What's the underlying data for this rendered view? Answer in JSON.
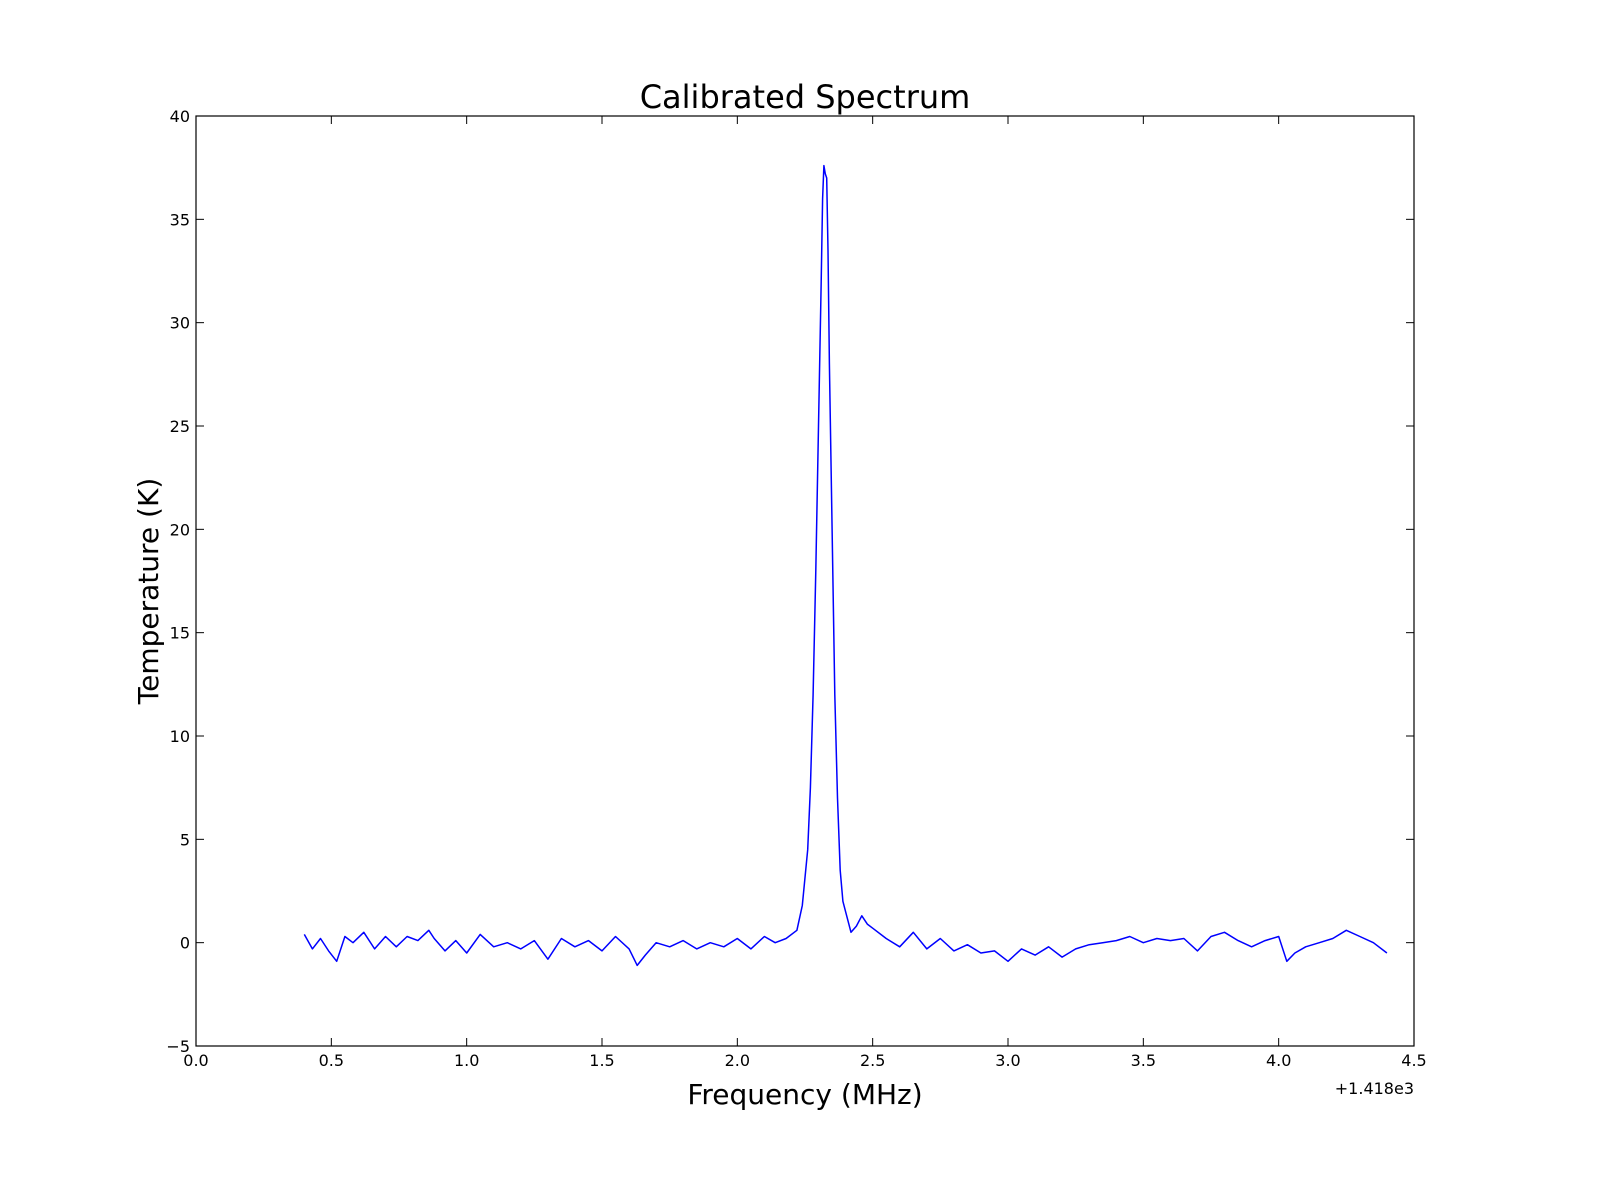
{
  "chart_data": {
    "type": "line",
    "title": "Calibrated Spectrum",
    "xlabel": "Frequency (MHz)",
    "ylabel": "Temperature (K)",
    "x_offset_label": "+1.418e3",
    "xlim": [
      0.0,
      4.5
    ],
    "ylim": [
      -5,
      40
    ],
    "xticks": [
      0.0,
      0.5,
      1.0,
      1.5,
      2.0,
      2.5,
      3.0,
      3.5,
      4.0,
      4.5
    ],
    "xtick_labels": [
      "0.0",
      "0.5",
      "1.0",
      "1.5",
      "2.0",
      "2.5",
      "3.0",
      "3.5",
      "4.0",
      "4.5"
    ],
    "yticks": [
      -5,
      0,
      5,
      10,
      15,
      20,
      25,
      30,
      35,
      40
    ],
    "ytick_labels": [
      "−5",
      "0",
      "5",
      "10",
      "15",
      "20",
      "25",
      "30",
      "35",
      "40"
    ],
    "grid": false,
    "line_color": "#0000ff",
    "series": [
      {
        "x": [
          0.4,
          0.43,
          0.46,
          0.49,
          0.52,
          0.55,
          0.58,
          0.62,
          0.66,
          0.7,
          0.74,
          0.78,
          0.82,
          0.86,
          0.88,
          0.92,
          0.96,
          1.0,
          1.05,
          1.1,
          1.15,
          1.2,
          1.25,
          1.3,
          1.35,
          1.4,
          1.45,
          1.5,
          1.55,
          1.6,
          1.63,
          1.66,
          1.7,
          1.75,
          1.8,
          1.85,
          1.9,
          1.95,
          2.0,
          2.05,
          2.1,
          2.14,
          2.18,
          2.22,
          2.24,
          2.26,
          2.27,
          2.28,
          2.29,
          2.3,
          2.31,
          2.315,
          2.32,
          2.325,
          2.33,
          2.335,
          2.34,
          2.35,
          2.36,
          2.37,
          2.38,
          2.39,
          2.4,
          2.42,
          2.44,
          2.46,
          2.48,
          2.5,
          2.55,
          2.6,
          2.65,
          2.7,
          2.75,
          2.8,
          2.85,
          2.9,
          2.95,
          3.0,
          3.05,
          3.1,
          3.15,
          3.2,
          3.25,
          3.3,
          3.35,
          3.4,
          3.45,
          3.5,
          3.55,
          3.6,
          3.65,
          3.7,
          3.75,
          3.8,
          3.85,
          3.9,
          3.95,
          4.0,
          4.03,
          4.06,
          4.1,
          4.15,
          4.2,
          4.25,
          4.3,
          4.35,
          4.4
        ],
        "y": [
          0.4,
          -0.3,
          0.2,
          -0.4,
          -0.9,
          0.3,
          0.0,
          0.5,
          -0.3,
          0.3,
          -0.2,
          0.3,
          0.1,
          0.6,
          0.2,
          -0.4,
          0.1,
          -0.5,
          0.4,
          -0.2,
          0.0,
          -0.3,
          0.1,
          -0.8,
          0.2,
          -0.2,
          0.1,
          -0.4,
          0.3,
          -0.3,
          -1.1,
          -0.6,
          0.0,
          -0.2,
          0.1,
          -0.3,
          0.0,
          -0.2,
          0.2,
          -0.3,
          0.3,
          0.0,
          0.2,
          0.6,
          1.8,
          4.5,
          7.5,
          12.0,
          18.0,
          25.0,
          32.0,
          36.0,
          37.6,
          37.2,
          37.0,
          33.5,
          28.0,
          20.0,
          12.0,
          7.0,
          3.5,
          2.0,
          1.5,
          0.5,
          0.8,
          1.3,
          0.9,
          0.7,
          0.2,
          -0.2,
          0.5,
          -0.3,
          0.2,
          -0.4,
          -0.1,
          -0.5,
          -0.4,
          -0.9,
          -0.3,
          -0.6,
          -0.2,
          -0.7,
          -0.3,
          -0.1,
          0.0,
          0.1,
          0.3,
          0.0,
          0.2,
          0.1,
          0.2,
          -0.4,
          0.3,
          0.5,
          0.1,
          -0.2,
          0.1,
          0.3,
          -0.9,
          -0.5,
          -0.2,
          0.0,
          0.2,
          0.6,
          0.3,
          0.0,
          -0.5
        ]
      }
    ]
  }
}
